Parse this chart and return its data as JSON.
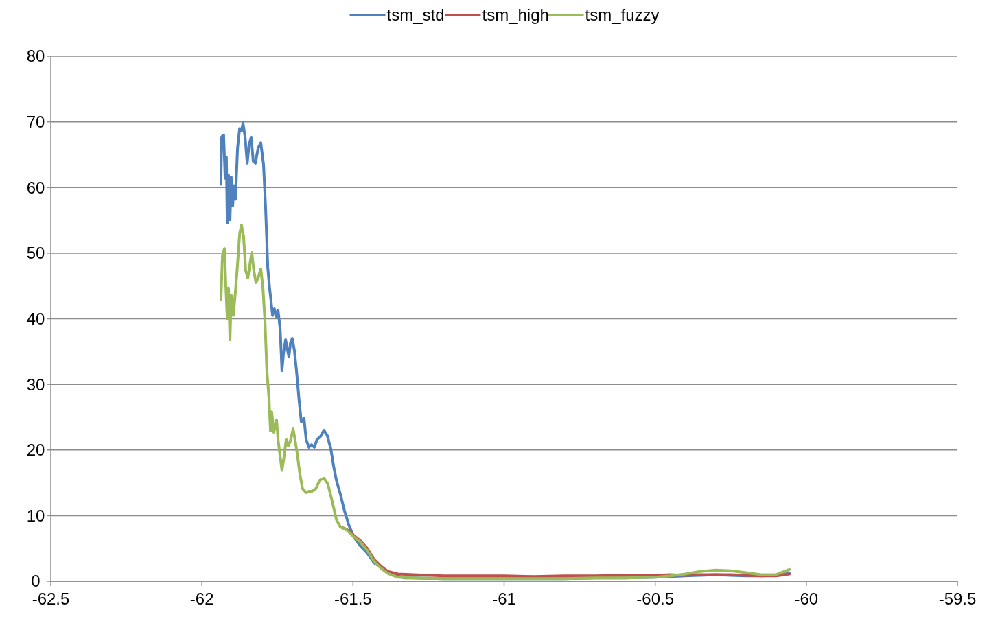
{
  "chart_data": {
    "type": "line",
    "xlim": [
      -62.5,
      -59.5
    ],
    "xticks": [
      -62.5,
      -62,
      -61.5,
      -61,
      -60.5,
      -60,
      -59.5
    ],
    "ylim": [
      0,
      80
    ],
    "yticks": [
      0,
      10,
      20,
      30,
      40,
      50,
      60,
      70,
      80
    ],
    "grid": "y",
    "legend": "top",
    "marker": "none",
    "line_style": "solid",
    "series": [
      {
        "name": "tsm_std",
        "color": "#4f81bd",
        "x": [
          -61.937,
          -61.935,
          -61.928,
          -61.923,
          -61.919,
          -61.916,
          -61.912,
          -61.907,
          -61.903,
          -61.898,
          -61.894,
          -61.889,
          -61.882,
          -61.875,
          -61.869,
          -61.864,
          -61.857,
          -61.85,
          -61.844,
          -61.837,
          -61.83,
          -61.823,
          -61.814,
          -61.805,
          -61.796,
          -61.789,
          -61.782,
          -61.776,
          -61.771,
          -61.766,
          -61.76,
          -61.753,
          -61.748,
          -61.741,
          -61.735,
          -61.73,
          -61.723,
          -61.719,
          -61.712,
          -61.707,
          -61.701,
          -61.694,
          -61.687,
          -61.678,
          -61.671,
          -61.662,
          -61.655,
          -61.646,
          -61.637,
          -61.628,
          -61.619,
          -61.607,
          -61.596,
          -61.585,
          -61.573,
          -61.564,
          -61.555,
          -61.542,
          -61.528,
          -61.514,
          -61.498,
          -61.476,
          -61.453,
          -61.43,
          -61.396,
          -61.362,
          -61.328,
          -61.3,
          -61.2,
          -61.1,
          -61.0,
          -60.9,
          -60.8,
          -60.7,
          -60.6,
          -60.5,
          -60.45,
          -60.4,
          -60.35,
          -60.3,
          -60.25,
          -60.2,
          -60.15,
          -60.1,
          -60.056
        ],
        "values": [
          60.5,
          67.7,
          68,
          61.4,
          64.6,
          54.6,
          61.9,
          55.1,
          61.6,
          57.2,
          60.3,
          58.2,
          66,
          69,
          68.6,
          69.8,
          67.7,
          63.7,
          66.4,
          67.7,
          64,
          63.7,
          66,
          66.8,
          63.5,
          56.7,
          47.8,
          44.7,
          42.6,
          40.5,
          41.5,
          40.3,
          41.3,
          38.4,
          32.1,
          34.7,
          36.8,
          35.8,
          34.2,
          36.3,
          37,
          35.2,
          32.1,
          27.4,
          24.3,
          24.8,
          21.6,
          20.4,
          20.8,
          20.4,
          21.6,
          22.1,
          23,
          22.2,
          20.1,
          17.5,
          15.4,
          13.3,
          10.7,
          8.6,
          6.8,
          5.4,
          4.3,
          2.8,
          1.8,
          0.9,
          0.5,
          0.5,
          0.4,
          0.4,
          0.4,
          0.4,
          0.4,
          0.5,
          0.5,
          0.6,
          0.7,
          0.8,
          0.9,
          1.0,
          0.9,
          0.8,
          0.8,
          0.9,
          1.2
        ]
      },
      {
        "name": "tsm_high",
        "color": "#c0504d",
        "x": [
          -61.542,
          -61.521,
          -61.498,
          -61.476,
          -61.453,
          -61.43,
          -61.408,
          -61.385,
          -61.351,
          -61.3,
          -61.2,
          -61.1,
          -61.0,
          -60.9,
          -60.8,
          -60.7,
          -60.6,
          -60.5,
          -60.45,
          -60.4,
          -60.35,
          -60.3,
          -60.25,
          -60.2,
          -60.15,
          -60.1,
          -60.056
        ],
        "values": [
          8.3,
          7.9,
          7.0,
          6.2,
          5.0,
          3.3,
          2.3,
          1.5,
          1.1,
          1.0,
          0.8,
          0.8,
          0.8,
          0.7,
          0.8,
          0.8,
          0.9,
          0.9,
          1.0,
          0.9,
          1.0,
          1.0,
          1.0,
          0.9,
          0.8,
          0.8,
          1.1
        ]
      },
      {
        "name": "tsm_fuzzy",
        "color": "#9bbb59",
        "x": [
          -61.937,
          -61.932,
          -61.925,
          -61.921,
          -61.916,
          -61.912,
          -61.907,
          -61.903,
          -61.896,
          -61.889,
          -61.882,
          -61.875,
          -61.869,
          -61.862,
          -61.855,
          -61.848,
          -61.841,
          -61.835,
          -61.828,
          -61.821,
          -61.814,
          -61.805,
          -61.798,
          -61.791,
          -61.785,
          -61.778,
          -61.773,
          -61.769,
          -61.762,
          -61.753,
          -61.748,
          -61.741,
          -61.735,
          -61.728,
          -61.721,
          -61.714,
          -61.707,
          -61.698,
          -61.692,
          -61.685,
          -61.676,
          -61.667,
          -61.655,
          -61.646,
          -61.635,
          -61.623,
          -61.61,
          -61.596,
          -61.583,
          -61.569,
          -61.555,
          -61.542,
          -61.521,
          -61.498,
          -61.476,
          -61.453,
          -61.43,
          -61.408,
          -61.385,
          -61.351,
          -61.3,
          -61.2,
          -61.1,
          -61.0,
          -60.9,
          -60.8,
          -60.7,
          -60.6,
          -60.5,
          -60.45,
          -60.4,
          -60.35,
          -60.3,
          -60.25,
          -60.2,
          -60.15,
          -60.1,
          -60.056
        ],
        "values": [
          42.9,
          49.6,
          50.7,
          45.2,
          40,
          44.7,
          36.8,
          43.6,
          40.5,
          44.1,
          48.3,
          53,
          54.3,
          52.5,
          47.3,
          46.2,
          48.3,
          50.1,
          47.3,
          45.5,
          46.2,
          47.6,
          44.7,
          39.4,
          32.1,
          27.9,
          22.9,
          25.8,
          22.7,
          24.6,
          21.6,
          19,
          16.9,
          19,
          21.6,
          20.6,
          21.4,
          23.2,
          21.6,
          19.6,
          16.4,
          14.1,
          13.5,
          13.7,
          13.7,
          14.1,
          15.4,
          15.7,
          14.8,
          12.2,
          9.4,
          8.3,
          7.8,
          6.8,
          6,
          4.7,
          3,
          2,
          1.2,
          0.6,
          0.5,
          0.4,
          0.4,
          0.4,
          0.4,
          0.4,
          0.5,
          0.5,
          0.6,
          0.8,
          1.1,
          1.5,
          1.7,
          1.6,
          1.3,
          1.0,
          1.0,
          1.8
        ]
      }
    ]
  }
}
